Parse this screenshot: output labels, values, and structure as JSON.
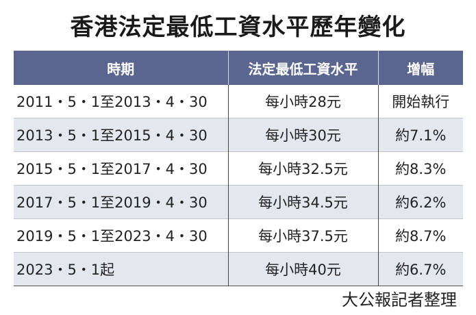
{
  "title": "香港法定最低工資水平歷年變化",
  "chart_data": {
    "type": "table",
    "columns": [
      "時期",
      "法定最低工資水平",
      "增幅"
    ],
    "rows": [
      [
        "2011・5・1至2013・4・30",
        "每小時28元",
        "開始執行"
      ],
      [
        "2013・5・1至2015・4・30",
        "每小時30元",
        "約7.1%"
      ],
      [
        "2015・5・1至2017・4・30",
        "每小時32.5元",
        "約8.3%"
      ],
      [
        "2017・5・1至2019・4・30",
        "每小時34.5元",
        "約6.2%"
      ],
      [
        "2019・5・1至2023・4・30",
        "每小時37.5元",
        "約8.7%"
      ],
      [
        "2023・5・1起",
        "每小時40元",
        "約6.7%"
      ]
    ],
    "header_color": "#5b6690",
    "alt_row_color": "#e3e7ee"
  },
  "source": "大公報記者整理"
}
